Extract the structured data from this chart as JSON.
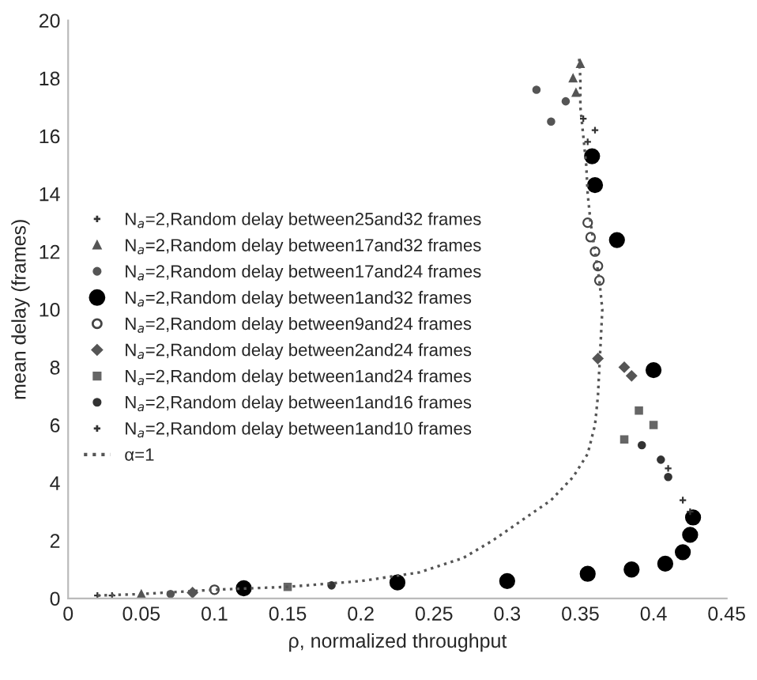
{
  "chart_data": {
    "type": "scatter",
    "xlabel": "ρ, normalized throughput",
    "ylabel": "mean delay (frames)",
    "xlim": [
      0,
      0.45
    ],
    "ylim": [
      0,
      20
    ],
    "xticks": [
      0,
      0.05,
      0.1,
      0.15,
      0.2,
      0.25,
      0.3,
      0.35,
      0.4,
      0.45
    ],
    "yticks": [
      0,
      2,
      4,
      6,
      8,
      10,
      12,
      14,
      16,
      18,
      20
    ],
    "grid": false,
    "legend": "left",
    "series": [
      {
        "name": "N$_{a}$=2,Random delay between25and32 frames",
        "color": "#333333",
        "marker": "cross",
        "x": [
          0.03,
          0.355,
          0.352,
          0.36
        ],
        "values": [
          0.1,
          15.8,
          16.6,
          16.2
        ]
      },
      {
        "name": "N$_{a}$=2,Random delay between17and32 frames",
        "color": "#555555",
        "marker": "triangle",
        "x": [
          0.05,
          0.35,
          0.345,
          0.347
        ],
        "values": [
          0.15,
          18.5,
          18,
          17.5
        ]
      },
      {
        "name": "N$_{a}$=2,Random delay between17and24 frames",
        "color": "#555555",
        "marker": "circle",
        "x": [
          0.07,
          0.33,
          0.34,
          0.32
        ],
        "values": [
          0.15,
          16.5,
          17.2,
          17.6
        ]
      },
      {
        "name": "N$_{a}$=2,Random delay between1and32 frames",
        "color": "#000000",
        "marker": "circle",
        "x": [
          0.12,
          0.225,
          0.3,
          0.355,
          0.385,
          0.408,
          0.42,
          0.425,
          0.427,
          0.4,
          0.375,
          0.36,
          0.358
        ],
        "values": [
          0.35,
          0.55,
          0.6,
          0.85,
          1.0,
          1.2,
          1.6,
          2.2,
          2.8,
          7.9,
          12.4,
          14.3,
          15.3
        ]
      },
      {
        "name": "N$_{a}$=2,Random delay between9and24 frames",
        "color": "#444444",
        "marker": "circle",
        "x": [
          0.1,
          0.355,
          0.357,
          0.36,
          0.362,
          0.363
        ],
        "values": [
          0.3,
          13,
          12.5,
          12,
          11.5,
          11
        ]
      },
      {
        "name": "N$_{a}$=2,Random delay between2and24 frames",
        "color": "#555555",
        "marker": "diamond",
        "x": [
          0.085,
          0.38,
          0.385,
          0.362
        ],
        "values": [
          0.2,
          8,
          7.7,
          8.3
        ]
      },
      {
        "name": "N$_{a}$=2,Random delay between1and24 frames",
        "color": "#666666",
        "marker": "square",
        "x": [
          0.15,
          0.39,
          0.4,
          0.38
        ],
        "values": [
          0.4,
          6.5,
          6,
          5.5
        ]
      },
      {
        "name": "N$_{a}$=2,Random delay between1and16 frames",
        "color": "#333333",
        "marker": "circle",
        "x": [
          0.18,
          0.405,
          0.41,
          0.392
        ],
        "values": [
          0.45,
          4.8,
          4.2,
          5.3
        ]
      },
      {
        "name": "N$_{a}$=2,Random delay between1and10 frames",
        "color": "#333333",
        "marker": "cross",
        "x": [
          0.02,
          0.42,
          0.425,
          0.41
        ],
        "values": [
          0.1,
          3.4,
          3.0,
          4.5
        ]
      },
      {
        "name": "α=1",
        "type": "line",
        "line_style": "dotted",
        "color": "#555555",
        "marker": "none",
        "x": [
          0.02,
          0.05,
          0.1,
          0.15,
          0.2,
          0.24,
          0.27,
          0.29,
          0.31,
          0.33,
          0.345,
          0.355,
          0.36,
          0.362,
          0.363,
          0.364,
          0.365,
          0.363,
          0.36,
          0.357,
          0.355,
          0.354,
          0.352,
          0.35,
          0.35,
          0.349
        ],
        "values": [
          0.1,
          0.15,
          0.3,
          0.4,
          0.6,
          0.9,
          1.4,
          2.0,
          2.7,
          3.4,
          4.2,
          5,
          6,
          7,
          8,
          9,
          10,
          11,
          12,
          13,
          14,
          15,
          16,
          17,
          18,
          18.8
        ]
      }
    ]
  }
}
